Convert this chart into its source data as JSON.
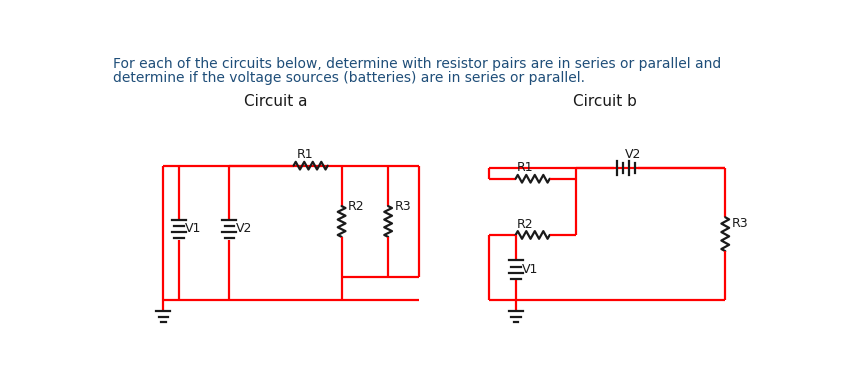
{
  "title_text1": "For each of the circuits below, determine with resistor pairs are in series or parallel and",
  "title_text2": "determine if the voltage sources (batteries) are in series or parallel.",
  "circuit_a_title": "Circuit a",
  "circuit_b_title": "Circuit b",
  "wire_color": "#FF0000",
  "component_color": "#1A1A1A",
  "text_color": "#1A1A1A",
  "title_color": "#1F4E79",
  "bg_color": "#FFFFFF",
  "wire_lw": 1.6,
  "component_lw": 1.6
}
